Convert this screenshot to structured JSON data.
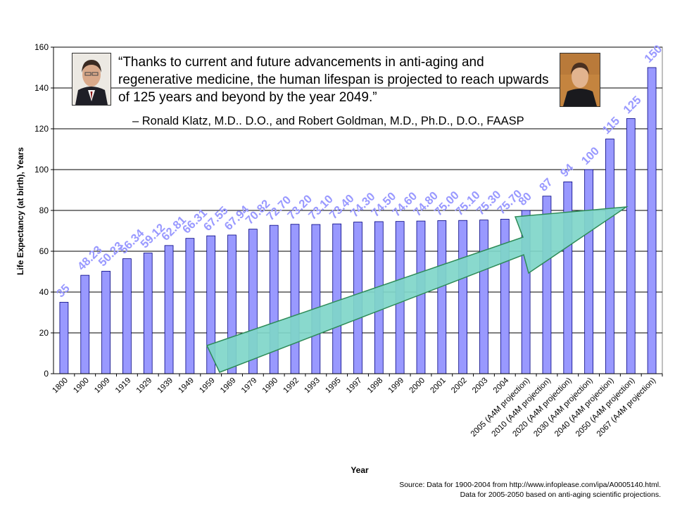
{
  "colors": {
    "bar_fill": "#9999ff",
    "bar_stroke": "#000080",
    "data_label": "#9999ff",
    "arrow_fill": "#7fd6c9",
    "arrow_stroke": "#2e8b57",
    "gridline": "#000000"
  },
  "quote": {
    "text": "“Thanks to current and future advancements in anti-aging and regenerative medicine, the human lifespan is projected to reach upwards of 125 years and beyond by the year 2049.”",
    "attribution": "– Ronald Klatz, M.D.. D.O., and Robert Goldman, M.D., Ph.D., D.O., FAASP"
  },
  "source": {
    "line1": "Source: Data for 1900-2004 from http://www.infoplease.com/ipa/A0005140.html.",
    "line2": "Data for 2005-2050 based on anti-aging scientific projections."
  },
  "chart_data": {
    "type": "bar",
    "title": "",
    "xlabel": "Year",
    "ylabel": "Life Expectancy (at birth), Years",
    "ylim": [
      0,
      160
    ],
    "yticks": [
      0,
      20,
      40,
      60,
      80,
      100,
      120,
      140,
      160
    ],
    "grid": true,
    "categories": [
      "1800",
      "1900",
      "1909",
      "1919",
      "1929",
      "1939",
      "1949",
      "1959",
      "1969",
      "1979",
      "1990",
      "1992",
      "1993",
      "1995",
      "1997",
      "1998",
      "1999",
      "2000",
      "2001",
      "2002",
      "2003",
      "2004",
      "2005 (A4M projection)",
      "2010 (A4M projection)",
      "2020 (A4M projection)",
      "2030 (A4M projection)",
      "2040 (A4M projection)",
      "2050 (A4M projection)",
      "2067 (A4M projection)"
    ],
    "values": [
      35,
      48.23,
      50.23,
      56.34,
      59.12,
      62.81,
      66.31,
      67.55,
      67.94,
      70.82,
      72.7,
      73.2,
      73.1,
      73.4,
      74.3,
      74.5,
      74.6,
      74.8,
      75.0,
      75.1,
      75.3,
      75.7,
      80,
      87,
      94,
      100,
      115,
      125,
      150
    ],
    "data_labels": [
      "35",
      "48.23",
      "50.23",
      "56.34",
      "59.12",
      "62.81",
      "66.31",
      "67.55",
      "67.94",
      "70.82",
      "72.70",
      "73.20",
      "73.10",
      "73.40",
      "74.30",
      "74.50",
      "74.60",
      "74.80",
      "75.00",
      "75.10",
      "75.30",
      "75.70",
      "80",
      "87",
      "94",
      "100",
      "115",
      "125",
      "150"
    ],
    "annotations": [
      "upward trend arrow"
    ]
  }
}
